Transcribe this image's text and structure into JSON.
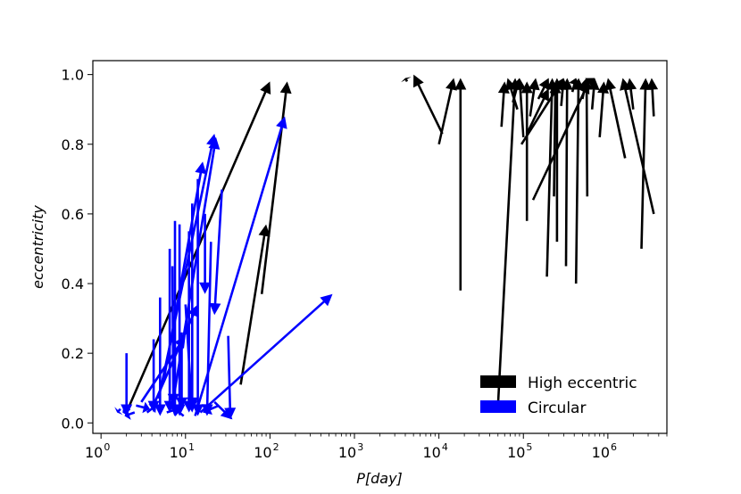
{
  "chart_data": {
    "type": "quiver",
    "xlabel": "P[day]",
    "ylabel": "eccentricity",
    "xscale": "log",
    "xlim": [
      0.8,
      5000000
    ],
    "ylim": [
      -0.03,
      1.04
    ],
    "xticks": [
      {
        "value": 1,
        "base": "10",
        "exp": "0"
      },
      {
        "value": 10,
        "base": "10",
        "exp": "1"
      },
      {
        "value": 100,
        "base": "10",
        "exp": "2"
      },
      {
        "value": 1000,
        "base": "10",
        "exp": "3"
      },
      {
        "value": 10000,
        "base": "10",
        "exp": "4"
      },
      {
        "value": 100000,
        "base": "10",
        "exp": "5"
      },
      {
        "value": 1000000,
        "base": "10",
        "exp": "6"
      }
    ],
    "yticks": [
      "0.0",
      "0.2",
      "0.4",
      "0.6",
      "0.8",
      "1.0"
    ],
    "legend": {
      "position": "lower-right",
      "entries": [
        {
          "label": "High eccentric",
          "color": "#000000"
        },
        {
          "label": "Circular",
          "color": "#0000ff"
        }
      ]
    },
    "series": [
      {
        "name": "High eccentric",
        "color": "#000000",
        "arrows": [
          {
            "x0": 2,
            "y0": 0.03,
            "x1": 100,
            "y1": 0.98
          },
          {
            "x0": 80,
            "y0": 0.37,
            "x1": 160,
            "y1": 0.98
          },
          {
            "x0": 45,
            "y0": 0.11,
            "x1": 90,
            "y1": 0.57
          },
          {
            "x0": 4200,
            "y0": 0.98,
            "x1": 4000,
            "y1": 0.99
          },
          {
            "x0": 11000,
            "y0": 0.83,
            "x1": 5000,
            "y1": 1.0
          },
          {
            "x0": 10000,
            "y0": 0.8,
            "x1": 15000,
            "y1": 0.99
          },
          {
            "x0": 18000,
            "y0": 0.38,
            "x1": 18000,
            "y1": 0.99
          },
          {
            "x0": 50000,
            "y0": 0.05,
            "x1": 80000,
            "y1": 0.99
          },
          {
            "x0": 55000,
            "y0": 0.85,
            "x1": 60000,
            "y1": 0.98
          },
          {
            "x0": 85000,
            "y0": 0.9,
            "x1": 65000,
            "y1": 0.99
          },
          {
            "x0": 100000,
            "y0": 0.82,
            "x1": 90000,
            "y1": 0.99
          },
          {
            "x0": 110000,
            "y0": 0.58,
            "x1": 110000,
            "y1": 0.98
          },
          {
            "x0": 95000,
            "y0": 0.8,
            "x1": 300000,
            "y1": 0.99
          },
          {
            "x0": 130000,
            "y0": 0.64,
            "x1": 600000,
            "y1": 0.98
          },
          {
            "x0": 190000,
            "y0": 0.42,
            "x1": 220000,
            "y1": 0.99
          },
          {
            "x0": 250000,
            "y0": 0.52,
            "x1": 250000,
            "y1": 0.99
          },
          {
            "x0": 320000,
            "y0": 0.45,
            "x1": 330000,
            "y1": 0.99
          },
          {
            "x0": 230000,
            "y0": 0.65,
            "x1": 240000,
            "y1": 0.98
          },
          {
            "x0": 420000,
            "y0": 0.4,
            "x1": 450000,
            "y1": 0.99
          },
          {
            "x0": 570000,
            "y0": 0.65,
            "x1": 560000,
            "y1": 0.99
          },
          {
            "x0": 380000,
            "y0": 0.95,
            "x1": 420000,
            "y1": 0.99
          },
          {
            "x0": 800000,
            "y0": 0.82,
            "x1": 900000,
            "y1": 0.98
          },
          {
            "x0": 1600000,
            "y0": 0.76,
            "x1": 1000000,
            "y1": 0.99
          },
          {
            "x0": 3500000,
            "y0": 0.6,
            "x1": 1500000,
            "y1": 0.99
          },
          {
            "x0": 2500000,
            "y0": 0.5,
            "x1": 2800000,
            "y1": 0.99
          },
          {
            "x0": 3500000,
            "y0": 0.88,
            "x1": 3300000,
            "y1": 0.99
          },
          {
            "x0": 2000000,
            "y0": 0.9,
            "x1": 1800000,
            "y1": 0.99
          },
          {
            "x0": 150000,
            "y0": 0.93,
            "x1": 200000,
            "y1": 0.99
          },
          {
            "x0": 120000,
            "y0": 0.88,
            "x1": 140000,
            "y1": 0.99
          },
          {
            "x0": 75000,
            "y0": 0.92,
            "x1": 90000,
            "y1": 0.99
          },
          {
            "x0": 650000,
            "y0": 0.9,
            "x1": 700000,
            "y1": 0.99
          },
          {
            "x0": 500000,
            "y0": 0.93,
            "x1": 560000,
            "y1": 0.99
          },
          {
            "x0": 280000,
            "y0": 0.91,
            "x1": 300000,
            "y1": 0.99
          },
          {
            "x0": 480000,
            "y0": 0.96,
            "x1": 700000,
            "y1": 0.99
          },
          {
            "x0": 110000,
            "y0": 0.83,
            "x1": 200000,
            "y1": 0.96
          }
        ]
      },
      {
        "name": "Circular",
        "color": "#0000ff",
        "arrows": [
          {
            "x0": 1.7,
            "y0": 0.04,
            "x1": 1.55,
            "y1": 0.03
          },
          {
            "x0": 2,
            "y0": 0.2,
            "x1": 2,
            "y1": 0.02
          },
          {
            "x0": 2.2,
            "y0": 0.04,
            "x1": 1.8,
            "y1": 0.03
          },
          {
            "x0": 2.6,
            "y0": 0.05,
            "x1": 3.8,
            "y1": 0.04
          },
          {
            "x0": 2.5,
            "y0": 0.03,
            "x1": 1.9,
            "y1": 0.02
          },
          {
            "x0": 3.5,
            "y0": 0.03,
            "x1": 4.5,
            "y1": 0.05
          },
          {
            "x0": 4.2,
            "y0": 0.24,
            "x1": 4.2,
            "y1": 0.03
          },
          {
            "x0": 5,
            "y0": 0.36,
            "x1": 5,
            "y1": 0.02
          },
          {
            "x0": 4.8,
            "y0": 0.07,
            "x1": 22,
            "y1": 0.83
          },
          {
            "x0": 5.5,
            "y0": 0.12,
            "x1": 16,
            "y1": 0.75
          },
          {
            "x0": 6.5,
            "y0": 0.5,
            "x1": 6.5,
            "y1": 0.03
          },
          {
            "x0": 7,
            "y0": 0.45,
            "x1": 7.2,
            "y1": 0.05
          },
          {
            "x0": 7,
            "y0": 0.05,
            "x1": 23,
            "y1": 0.82
          },
          {
            "x0": 7.5,
            "y0": 0.58,
            "x1": 7.5,
            "y1": 0.02
          },
          {
            "x0": 8.5,
            "y0": 0.57,
            "x1": 8.5,
            "y1": 0.02
          },
          {
            "x0": 9,
            "y0": 0.26,
            "x1": 9,
            "y1": 0.04
          },
          {
            "x0": 10,
            "y0": 0.34,
            "x1": 12,
            "y1": 0.03
          },
          {
            "x0": 11,
            "y0": 0.55,
            "x1": 11,
            "y1": 0.03
          },
          {
            "x0": 12,
            "y0": 0.63,
            "x1": 12,
            "y1": 0.04
          },
          {
            "x0": 14,
            "y0": 0.7,
            "x1": 14,
            "y1": 0.02
          },
          {
            "x0": 17,
            "y0": 0.6,
            "x1": 17,
            "y1": 0.37
          },
          {
            "x0": 20,
            "y0": 0.52,
            "x1": 18,
            "y1": 0.02
          },
          {
            "x0": 22,
            "y0": 0.06,
            "x1": 36,
            "y1": 0.01
          },
          {
            "x0": 25,
            "y0": 0.05,
            "x1": 16,
            "y1": 0.03
          },
          {
            "x0": 27,
            "y0": 0.67,
            "x1": 22,
            "y1": 0.31
          },
          {
            "x0": 32,
            "y0": 0.25,
            "x1": 34,
            "y1": 0.01
          },
          {
            "x0": 13,
            "y0": 0.02,
            "x1": 150,
            "y1": 0.88
          },
          {
            "x0": 15,
            "y0": 0.03,
            "x1": 550,
            "y1": 0.37
          },
          {
            "x0": 4,
            "y0": 0.04,
            "x1": 14,
            "y1": 0.34
          },
          {
            "x0": 3,
            "y0": 0.06,
            "x1": 10,
            "y1": 0.25
          },
          {
            "x0": 6,
            "y0": 0.03,
            "x1": 8,
            "y1": 0.04
          },
          {
            "x0": 9.5,
            "y0": 0.02,
            "x1": 7.5,
            "y1": 0.04
          }
        ]
      }
    ]
  }
}
